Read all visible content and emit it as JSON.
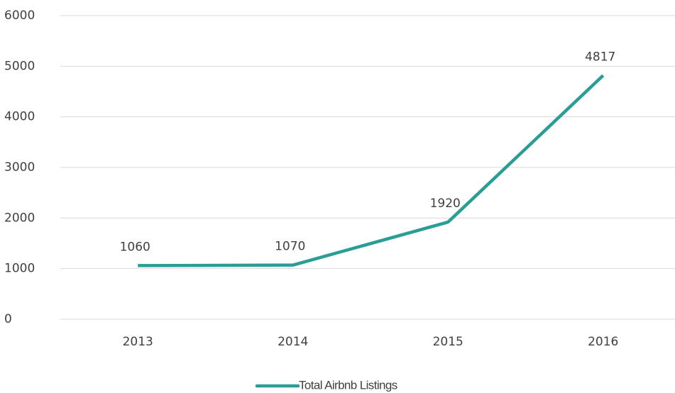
{
  "chart_data": {
    "type": "line",
    "categories": [
      "2013",
      "2014",
      "2015",
      "2016"
    ],
    "series": [
      {
        "name": "Total Airbnb Listings",
        "color": "#2a9d95",
        "values": [
          1060,
          1070,
          1920,
          4817
        ]
      }
    ],
    "ylim": [
      0,
      6000
    ],
    "yticks": [
      0,
      1000,
      2000,
      3000,
      4000,
      5000,
      6000
    ],
    "grid": true,
    "legend": "bottom",
    "data_labels": true
  }
}
